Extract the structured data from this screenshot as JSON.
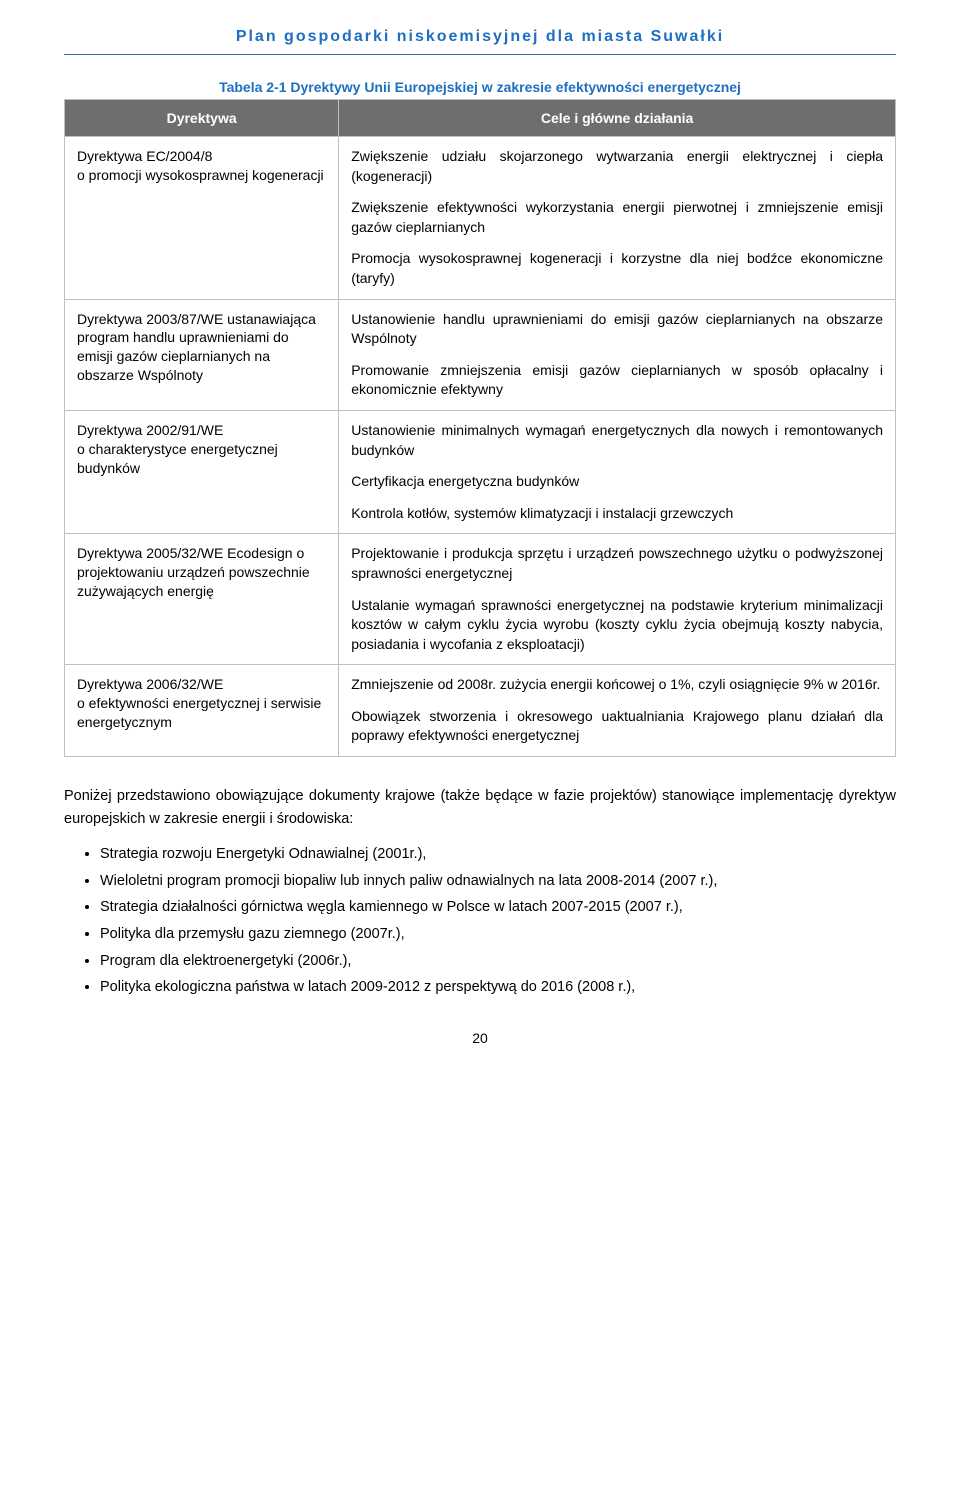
{
  "header": {
    "title": "Plan gospodarki niskoemisyjnej dla miasta Suwałki"
  },
  "table": {
    "caption": "Tabela 2-1 Dyrektywy Unii Europejskiej w zakresie efektywności energetycznej",
    "columns": [
      "Dyrektywa",
      "Cele i główne działania"
    ],
    "rows": [
      {
        "left": "Dyrektywa EC/2004/8\no promocji wysokosprawnej kogeneracji",
        "right": [
          "Zwiększenie udziału skojarzonego wytwarzania energii elektrycznej i ciepła (kogeneracji)",
          "Zwiększenie efektywności wykorzystania energii pierwotnej i zmniejszenie emisji gazów cieplarnianych",
          "Promocja wysokosprawnej kogeneracji i korzystne dla niej bodźce ekonomiczne (taryfy)"
        ]
      },
      {
        "left": "Dyrektywa 2003/87/WE ustanawiająca program handlu uprawnieniami do emisji gazów cieplarnianych na obszarze Wspólnoty",
        "right": [
          "Ustanowienie handlu uprawnieniami do emisji gazów cieplarnianych na obszarze Wspólnoty",
          "Promowanie zmniejszenia emisji gazów cieplarnianych w sposób opłacalny i ekonomicznie efektywny"
        ]
      },
      {
        "left": "Dyrektywa 2002/91/WE\no charakterystyce energetycznej budynków",
        "right": [
          "Ustanowienie minimalnych wymagań energetycznych dla nowych i remontowanych budynków",
          "Certyfikacja energetyczna budynków",
          "Kontrola kotłów, systemów klimatyzacji i instalacji grzewczych"
        ]
      },
      {
        "left": "Dyrektywa 2005/32/WE Ecodesign o projektowaniu urządzeń powszechnie zużywających energię",
        "right": [
          "Projektowanie i produkcja sprzętu i urządzeń powszechnego użytku o podwyższonej sprawności energetycznej",
          "Ustalanie wymagań sprawności energetycznej na podstawie kryterium minimalizacji kosztów w całym cyklu życia wyrobu (koszty cyklu życia obejmują koszty nabycia, posiadania i wycofania z eksploatacji)"
        ]
      },
      {
        "left": "Dyrektywa 2006/32/WE\no efektywności energetycznej i serwisie energetycznym",
        "right": [
          "Zmniejszenie od 2008r. zużycia energii końcowej o 1%, czyli osiągnięcie 9% w 2016r.",
          "Obowiązek stworzenia i okresowego uaktualniania Krajowego planu działań dla poprawy efektywności energetycznej"
        ]
      }
    ]
  },
  "paragraph": "Poniżej przedstawiono obowiązujące dokumenty krajowe (także będące w fazie projektów) stanowiące implementację dyrektyw europejskich w zakresie energii i środowiska:",
  "bullets": [
    "Strategia rozwoju Energetyki Odnawialnej (2001r.),",
    "Wieloletni program promocji biopaliw lub innych paliw odnawialnych na lata 2008-2014 (2007 r.),",
    "Strategia działalności górnictwa węgla kamiennego w Polsce w latach 2007-2015 (2007 r.),",
    "Polityka dla przemysłu gazu ziemnego (2007r.),",
    "Program dla elektroenergetyki (2006r.),",
    "Polityka ekologiczna państwa w latach 2009-2012 z perspektywą do 2016 (2008 r.),"
  ],
  "page_number": "20"
}
